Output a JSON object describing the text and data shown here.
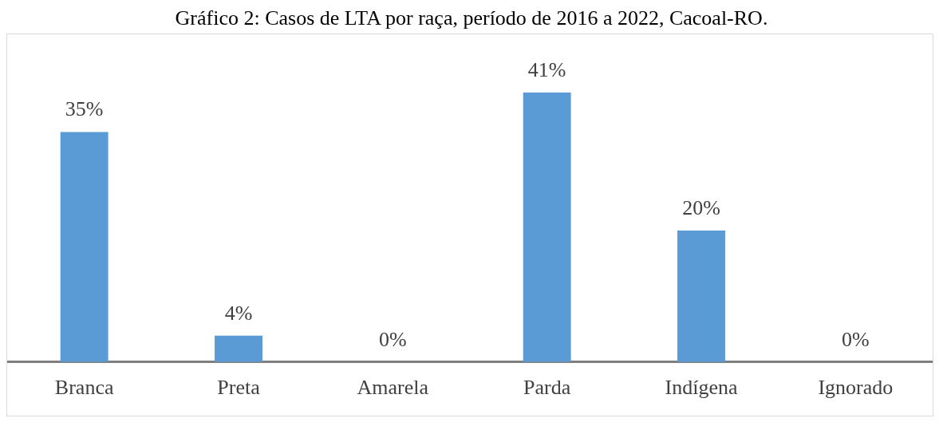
{
  "chart_data": {
    "type": "bar",
    "title": "Gráfico 2: Casos de LTA por raça, período de 2016 a 2022, Cacoal-RO.",
    "categories": [
      "Branca",
      "Preta",
      "Amarela",
      "Parda",
      "Indígena",
      "Ignorado"
    ],
    "values": [
      35,
      4,
      0,
      41,
      20,
      0
    ],
    "value_labels": [
      "35%",
      "4%",
      "0%",
      "41%",
      "20%",
      "0%"
    ],
    "color": "#5b9bd5",
    "grid": false,
    "legend": false
  }
}
